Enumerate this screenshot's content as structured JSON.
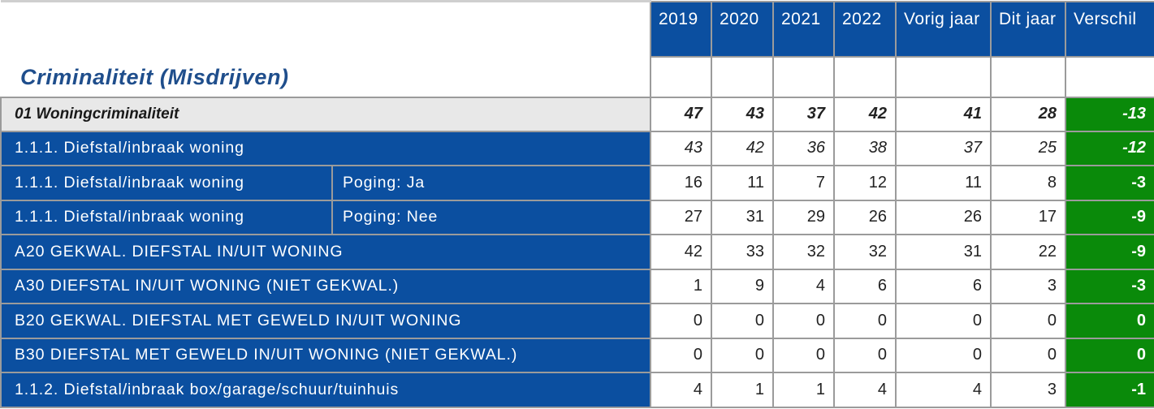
{
  "title": "Criminaliteit (Misdrijven)",
  "columns": [
    "2019",
    "2020",
    "2021",
    "2022",
    "Vorig jaar",
    "Dit jaar",
    "Verschil"
  ],
  "group": {
    "label": "01 Woningcriminaliteit",
    "values": [
      "47",
      "43",
      "37",
      "42",
      "41",
      "28"
    ],
    "diff": "-13"
  },
  "rows": [
    {
      "label": "1.1.1. Diefstal/inbraak woning",
      "sub": "",
      "values": [
        "43",
        "42",
        "36",
        "38",
        "37",
        "25"
      ],
      "diff": "-12"
    },
    {
      "label": "1.1.1. Diefstal/inbraak woning",
      "sub": "Poging: Ja",
      "values": [
        "16",
        "11",
        "7",
        "12",
        "11",
        "8"
      ],
      "diff": "-3"
    },
    {
      "label": "1.1.1. Diefstal/inbraak woning",
      "sub": "Poging: Nee",
      "values": [
        "27",
        "31",
        "29",
        "26",
        "26",
        "17"
      ],
      "diff": "-9"
    },
    {
      "label": "A20 GEKWAL. DIEFSTAL IN/UIT WONING",
      "sub": "",
      "values": [
        "42",
        "33",
        "32",
        "32",
        "31",
        "22"
      ],
      "diff": "-9"
    },
    {
      "label": "A30 DIEFSTAL IN/UIT WONING (NIET GEKWAL.)",
      "sub": "",
      "values": [
        "1",
        "9",
        "4",
        "6",
        "6",
        "3"
      ],
      "diff": "-3"
    },
    {
      "label": "B20 GEKWAL. DIEFSTAL MET GEWELD IN/UIT WONING",
      "sub": "",
      "values": [
        "0",
        "0",
        "0",
        "0",
        "0",
        "0"
      ],
      "diff": "0"
    },
    {
      "label": "B30 DIEFSTAL MET GEWELD IN/UIT WONING (NIET GEKWAL.)",
      "sub": "",
      "values": [
        "0",
        "0",
        "0",
        "0",
        "0",
        "0"
      ],
      "diff": "0"
    },
    {
      "label": "1.1.2. Diefstal/inbraak box/garage/schuur/tuinhuis",
      "sub": "",
      "values": [
        "4",
        "1",
        "1",
        "4",
        "4",
        "3"
      ],
      "diff": "-1"
    }
  ]
}
